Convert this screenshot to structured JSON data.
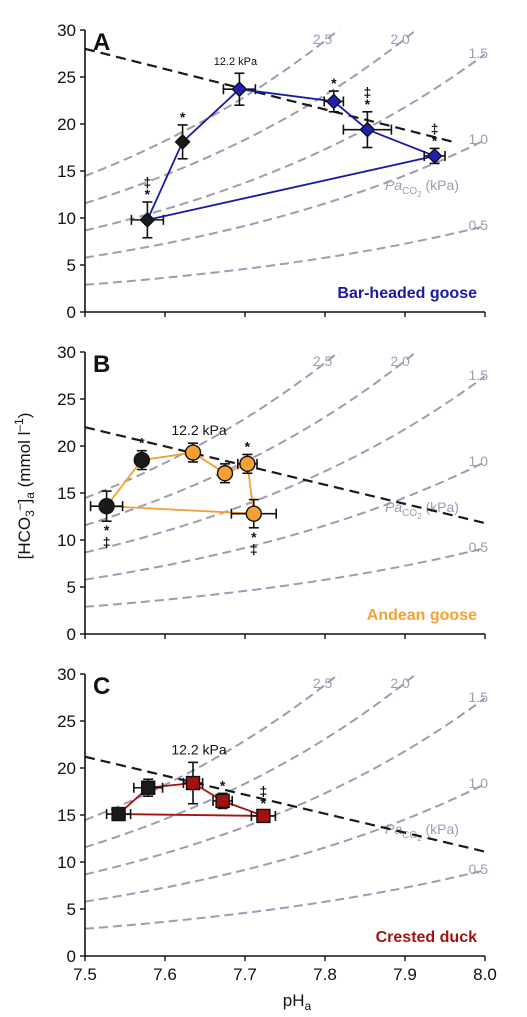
{
  "figure": {
    "ylabel_main": "[HCO",
    "ylabel_sub": "3",
    "ylabel_sup": "–",
    "ylabel_bracket": "]",
    "ylabel_sub2": "a",
    "ylabel_units": " (mmol l",
    "ylabel_units_sup": "–1",
    "ylabel_units_close": ")",
    "xlabel_main": "pH",
    "xlabel_sub": "a",
    "isopleth_label_main": "Pa",
    "isopleth_label_sub": "CO",
    "isopleth_label_sub2": "2",
    "isopleth_label_units": " (kPa)"
  },
  "chart_data": [
    {
      "type": "scatter",
      "panel_letter": "A",
      "species": "Bar-headed goose",
      "species_color": "#1a1aa6",
      "marker": "diamond",
      "isopleths": [
        {
          "pco2": 2.5,
          "label": "2.5"
        },
        {
          "pco2": 2.0,
          "label": "2.0"
        },
        {
          "pco2": 1.5,
          "label": "1.5"
        },
        {
          "pco2": 1.0,
          "label": "1.0"
        },
        {
          "pco2": 0.5,
          "label": "0.5"
        }
      ],
      "buffer_line": {
        "x": [
          7.5,
          7.965
        ],
        "y": [
          28.0,
          18.0
        ]
      },
      "annotation": "12.2 kPa",
      "points": [
        {
          "x": 7.578,
          "y": 9.8,
          "xerr": 0.02,
          "yerr": 1.9,
          "fill": "#1a1a1a",
          "marks": [
            "‡",
            "*"
          ]
        },
        {
          "x": 7.622,
          "y": 18.1,
          "xerr": 0.0,
          "yerr": 1.8,
          "fill": "#1a1a1a",
          "marks": [
            "*"
          ]
        },
        {
          "x": 7.693,
          "y": 23.7,
          "xerr": 0.02,
          "yerr": 1.7,
          "fill": "#1e22b4",
          "marks": []
        },
        {
          "x": 7.811,
          "y": 22.4,
          "xerr": 0.012,
          "yerr": 1.1,
          "fill": "#1e22b4",
          "marks": [
            "*"
          ]
        },
        {
          "x": 7.853,
          "y": 19.4,
          "xerr": 0.03,
          "yerr": 1.9,
          "fill": "#1e22b4",
          "marks": [
            "‡",
            "*"
          ]
        },
        {
          "x": 7.937,
          "y": 16.6,
          "xerr": 0.013,
          "yerr": 0.8,
          "fill": "#1e22b4",
          "marks": [
            "‡",
            "*"
          ]
        }
      ],
      "line_color": "#1a1aa6",
      "line_order": [
        0,
        1,
        2,
        3,
        4,
        5,
        0
      ]
    },
    {
      "type": "scatter",
      "panel_letter": "B",
      "species": "Andean goose",
      "species_color": "#f5a033",
      "marker": "circle",
      "isopleths": [
        {
          "pco2": 2.5,
          "label": "2.5"
        },
        {
          "pco2": 2.0,
          "label": "2.0"
        },
        {
          "pco2": 1.5,
          "label": "1.5"
        },
        {
          "pco2": 1.0,
          "label": "1.0"
        },
        {
          "pco2": 0.5,
          "label": "0.5"
        }
      ],
      "buffer_line": {
        "x": [
          7.5,
          8.0
        ],
        "y": [
          22.0,
          11.8
        ]
      },
      "annotation": "12.2 kPa",
      "points": [
        {
          "x": 7.527,
          "y": 13.6,
          "xerr": 0.02,
          "yerr": 1.6,
          "fill": "#1a1a1a",
          "marks": [
            "*",
            "‡"
          ],
          "marks_below": true
        },
        {
          "x": 7.571,
          "y": 18.5,
          "xerr": 0.0,
          "yerr": 1.0,
          "fill": "#1a1a1a",
          "marks": [
            "*"
          ]
        },
        {
          "x": 7.635,
          "y": 19.3,
          "xerr": 0.0,
          "yerr": 1.0,
          "fill": "#f5a033",
          "marks": []
        },
        {
          "x": 7.675,
          "y": 17.1,
          "xerr": 0.0,
          "yerr": 1.0,
          "fill": "#f5a033",
          "marks": []
        },
        {
          "x": 7.703,
          "y": 18.1,
          "xerr": 0.012,
          "yerr": 1.0,
          "fill": "#f5a033",
          "marks": [
            "*"
          ]
        },
        {
          "x": 7.711,
          "y": 12.8,
          "xerr": 0.028,
          "yerr": 1.5,
          "fill": "#f5a033",
          "marks": [
            "*",
            "‡"
          ],
          "marks_below": true
        }
      ],
      "line_color": "#f5a033",
      "line_order": [
        0,
        1,
        2,
        3,
        4,
        5,
        0
      ]
    },
    {
      "type": "scatter",
      "panel_letter": "C",
      "species": "Crested duck",
      "species_color": "#a31212",
      "marker": "square",
      "isopleths": [
        {
          "pco2": 2.5,
          "label": "2.5"
        },
        {
          "pco2": 2.0,
          "label": "2.0"
        },
        {
          "pco2": 1.5,
          "label": "1.5"
        },
        {
          "pco2": 1.0,
          "label": "1.0"
        },
        {
          "pco2": 0.5,
          "label": "0.5"
        }
      ],
      "buffer_line": {
        "x": [
          7.5,
          8.0
        ],
        "y": [
          21.2,
          11.1
        ]
      },
      "annotation": "12.2 kPa",
      "points": [
        {
          "x": 7.542,
          "y": 15.1,
          "xerr": 0.015,
          "yerr": 0.0,
          "fill": "#1a1a1a",
          "marks": []
        },
        {
          "x": 7.579,
          "y": 17.9,
          "xerr": 0.018,
          "yerr": 0.9,
          "fill": "#1a1a1a",
          "marks": []
        },
        {
          "x": 7.635,
          "y": 18.4,
          "xerr": 0.012,
          "yerr": 2.2,
          "fill": "#a31212",
          "marks": []
        },
        {
          "x": 7.672,
          "y": 16.5,
          "xerr": 0.012,
          "yerr": 0.8,
          "fill": "#a31212",
          "marks": [
            "*"
          ]
        },
        {
          "x": 7.723,
          "y": 14.9,
          "xerr": 0.015,
          "yerr": 0.5,
          "fill": "#a31212",
          "marks": [
            "‡",
            "*"
          ]
        }
      ],
      "line_color": "#a31212",
      "line_order": [
        0,
        1,
        2,
        3,
        4,
        0
      ]
    }
  ],
  "axes": {
    "xlim": [
      7.5,
      8.0
    ],
    "ylim": [
      0,
      30
    ],
    "xticks": [
      "7.5",
      "7.6",
      "7.7",
      "7.8",
      "7.9",
      "8.0"
    ],
    "yticks": [
      "0",
      "5",
      "10",
      "15",
      "20",
      "25",
      "30"
    ],
    "xtick_values": [
      7.5,
      7.6,
      7.7,
      7.8,
      7.9,
      8.0
    ],
    "ytick_values": [
      0,
      5,
      10,
      15,
      20,
      25,
      30
    ],
    "isopleth_color": "#9c9cb5",
    "buffer_line_color": "#1a1a1a"
  }
}
